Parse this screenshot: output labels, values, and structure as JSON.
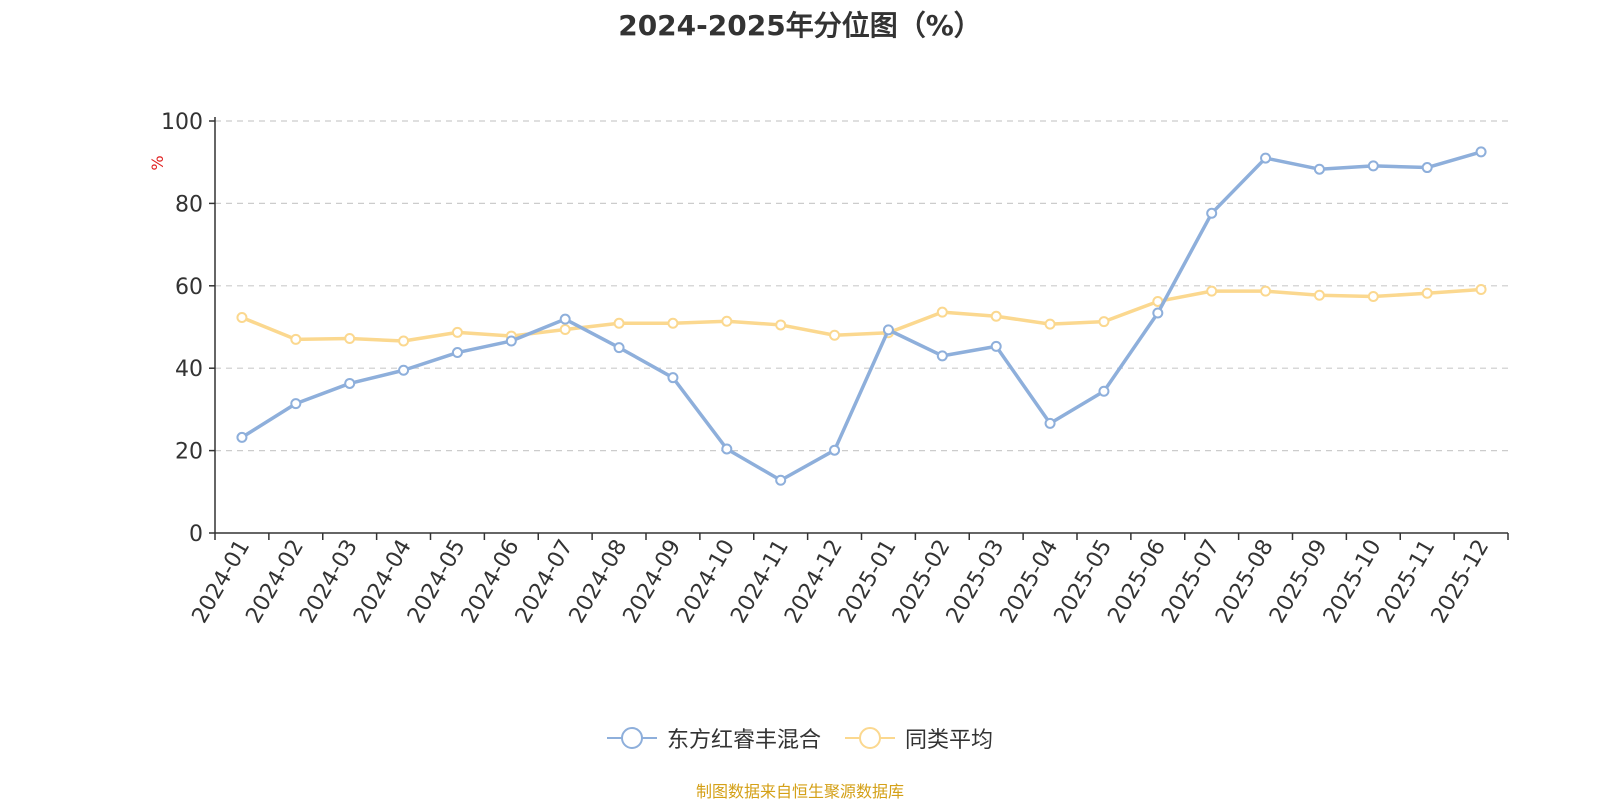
{
  "chart_data": {
    "type": "line",
    "title": "2024-2025年分位图（%）",
    "ylabel": "%",
    "xlabel": "",
    "ylim": [
      0,
      100
    ],
    "yticks": [
      0,
      20,
      40,
      60,
      80,
      100
    ],
    "grid": true,
    "legend_position": "bottom",
    "categories": [
      "2024-01",
      "2024-02",
      "2024-03",
      "2024-04",
      "2024-05",
      "2024-06",
      "2024-07",
      "2024-08",
      "2024-09",
      "2024-10",
      "2024-11",
      "2024-12",
      "2025-01",
      "2025-02",
      "2025-03",
      "2025-04",
      "2025-05",
      "2025-06",
      "2025-07",
      "2025-08",
      "2025-09",
      "2025-10",
      "2025-11",
      "2025-12"
    ],
    "series": [
      {
        "name": "东方红睿丰混合",
        "color": "#8eafdb",
        "values": [
          23.2,
          31.4,
          36.3,
          39.5,
          43.8,
          46.6,
          51.9,
          45.0,
          37.7,
          20.4,
          12.8,
          20.1,
          49.3,
          43.0,
          45.3,
          26.6,
          34.4,
          53.4,
          77.6,
          91.0,
          88.3,
          89.1,
          88.7,
          92.5
        ]
      },
      {
        "name": "同类平均",
        "color": "#fbd88f",
        "values": [
          52.3,
          47.0,
          47.2,
          46.6,
          48.7,
          47.8,
          49.4,
          50.9,
          50.9,
          51.4,
          50.5,
          48.0,
          48.6,
          53.6,
          52.6,
          50.7,
          51.3,
          56.2,
          58.7,
          58.7,
          57.7,
          57.4,
          58.2,
          59.1
        ]
      }
    ]
  },
  "source_note": "制图数据来自恒生聚源数据库"
}
